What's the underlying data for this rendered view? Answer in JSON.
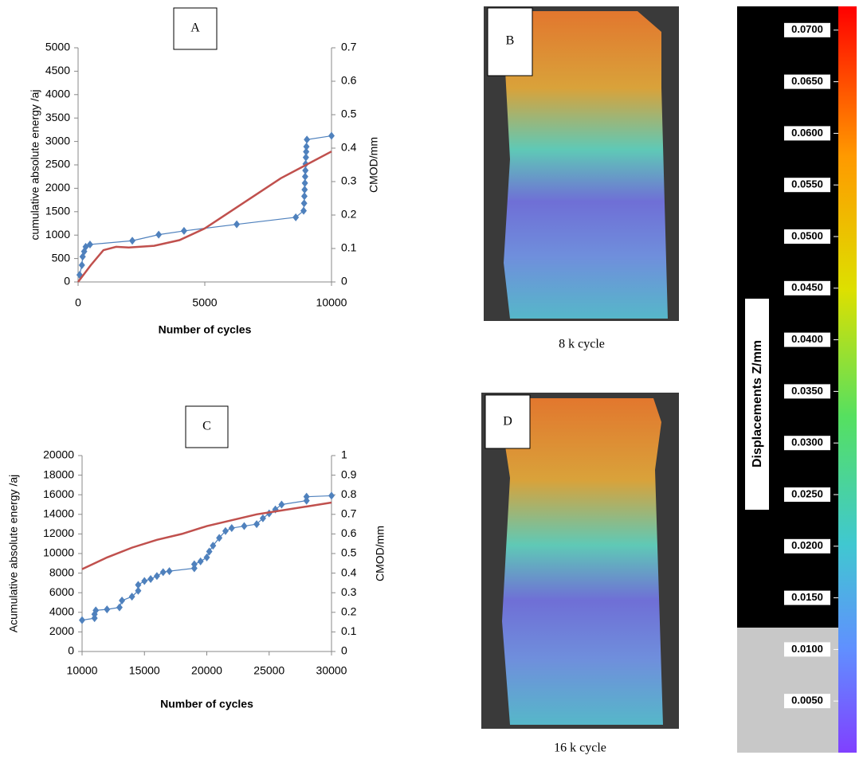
{
  "chart_data": [
    {
      "type": "line",
      "label": "A",
      "xlabel": "Number of cycles",
      "ylabel": "cumulative absolute energy /aj",
      "y2label": "CMOD/mm",
      "xlim": [
        0,
        10000
      ],
      "xticks": [
        0,
        5000,
        10000
      ],
      "ylim": [
        0,
        5000
      ],
      "yticks": [
        0,
        500,
        1000,
        1500,
        2000,
        2500,
        3000,
        3500,
        4000,
        4500,
        5000
      ],
      "y2lim": [
        0,
        0.7
      ],
      "y2ticks": [
        0,
        0.1,
        0.2,
        0.3,
        0.4,
        0.5,
        0.6,
        0.7
      ],
      "series": [
        {
          "color": "#4f81bd",
          "marker": "diamond",
          "x": [
            60,
            150,
            180,
            240,
            300,
            470,
            2140,
            3180,
            4180,
            6260,
            8590,
            8900,
            8920,
            8930,
            8940,
            8950,
            8960,
            8970,
            8980,
            8990,
            9000,
            9010,
            9030,
            10000
          ],
          "values": [
            150,
            360,
            540,
            650,
            750,
            800,
            880,
            1010,
            1090,
            1230,
            1380,
            1520,
            1680,
            1830,
            1970,
            2110,
            2250,
            2380,
            2520,
            2660,
            2780,
            2890,
            3040,
            3120
          ]
        },
        {
          "color": "#c0504d",
          "axis": "y2",
          "x": [
            0,
            500,
            1000,
            1500,
            2000,
            3000,
            4000,
            5000,
            6000,
            7000,
            8000,
            9000,
            10000
          ],
          "values": [
            0,
            0.05,
            0.095,
            0.105,
            0.103,
            0.108,
            0.125,
            0.16,
            0.21,
            0.26,
            0.31,
            0.35,
            0.39
          ]
        }
      ]
    },
    {
      "type": "line",
      "label": "C",
      "xlabel": "Number of cycles",
      "ylabel": "Acumulative absolute energy /aj",
      "y2label": "CMOD/mm",
      "xlim": [
        10000,
        30000
      ],
      "xticks": [
        10000,
        15000,
        20000,
        25000,
        30000
      ],
      "ylim": [
        0,
        20000
      ],
      "yticks": [
        0,
        2000,
        4000,
        6000,
        8000,
        10000,
        12000,
        14000,
        16000,
        18000,
        20000
      ],
      "y2lim": [
        0,
        1
      ],
      "y2ticks": [
        0,
        0.1,
        0.2,
        0.3,
        0.4,
        0.5,
        0.6,
        0.7,
        0.8,
        0.9,
        1
      ],
      "series": [
        {
          "color": "#4f81bd",
          "marker": "diamond",
          "x": [
            10000,
            11000,
            11000,
            11100,
            12000,
            13000,
            13200,
            14000,
            14500,
            14500,
            15000,
            15500,
            16000,
            16500,
            17000,
            19000,
            19000,
            19500,
            20000,
            20200,
            20500,
            21000,
            21500,
            22000,
            23000,
            24000,
            24500,
            25000,
            25500,
            26000,
            28000,
            28000,
            30000
          ],
          "values": [
            3200,
            3400,
            3800,
            4200,
            4300,
            4500,
            5200,
            5600,
            6200,
            6800,
            7200,
            7400,
            7700,
            8100,
            8200,
            8500,
            8900,
            9200,
            9600,
            10200,
            10800,
            11600,
            12300,
            12600,
            12800,
            13000,
            13600,
            14100,
            14500,
            15000,
            15400,
            15800,
            15900
          ]
        },
        {
          "color": "#c0504d",
          "axis": "y2",
          "x": [
            10000,
            12000,
            14000,
            16000,
            18000,
            20000,
            22000,
            24000,
            26000,
            28000,
            30000
          ],
          "values": [
            0.42,
            0.48,
            0.53,
            0.57,
            0.6,
            0.64,
            0.67,
            0.7,
            0.72,
            0.74,
            0.76
          ]
        }
      ]
    }
  ],
  "images": [
    {
      "label": "B",
      "caption": "8 k cycle"
    },
    {
      "label": "D",
      "caption": "16 k cycle"
    }
  ],
  "colorbar": {
    "title": "Displacements Z/mm",
    "lim": [
      0,
      0.0723
    ],
    "ticks": [
      {
        "value": 0.005,
        "label": "0.0050"
      },
      {
        "value": 0.01,
        "label": "0.0100"
      },
      {
        "value": 0.015,
        "label": "0.0150"
      },
      {
        "value": 0.02,
        "label": "0.0200"
      },
      {
        "value": 0.025,
        "label": "0.0250"
      },
      {
        "value": 0.03,
        "label": "0.0300"
      },
      {
        "value": 0.035,
        "label": "0.0350"
      },
      {
        "value": 0.04,
        "label": "0.0400"
      },
      {
        "value": 0.045,
        "label": "0.0450"
      },
      {
        "value": 0.05,
        "label": "0.0500"
      },
      {
        "value": 0.055,
        "label": "0.0550"
      },
      {
        "value": 0.06,
        "label": "0.0600"
      },
      {
        "value": 0.065,
        "label": "0.0650"
      },
      {
        "value": 0.07,
        "label": "0.0700"
      }
    ]
  }
}
